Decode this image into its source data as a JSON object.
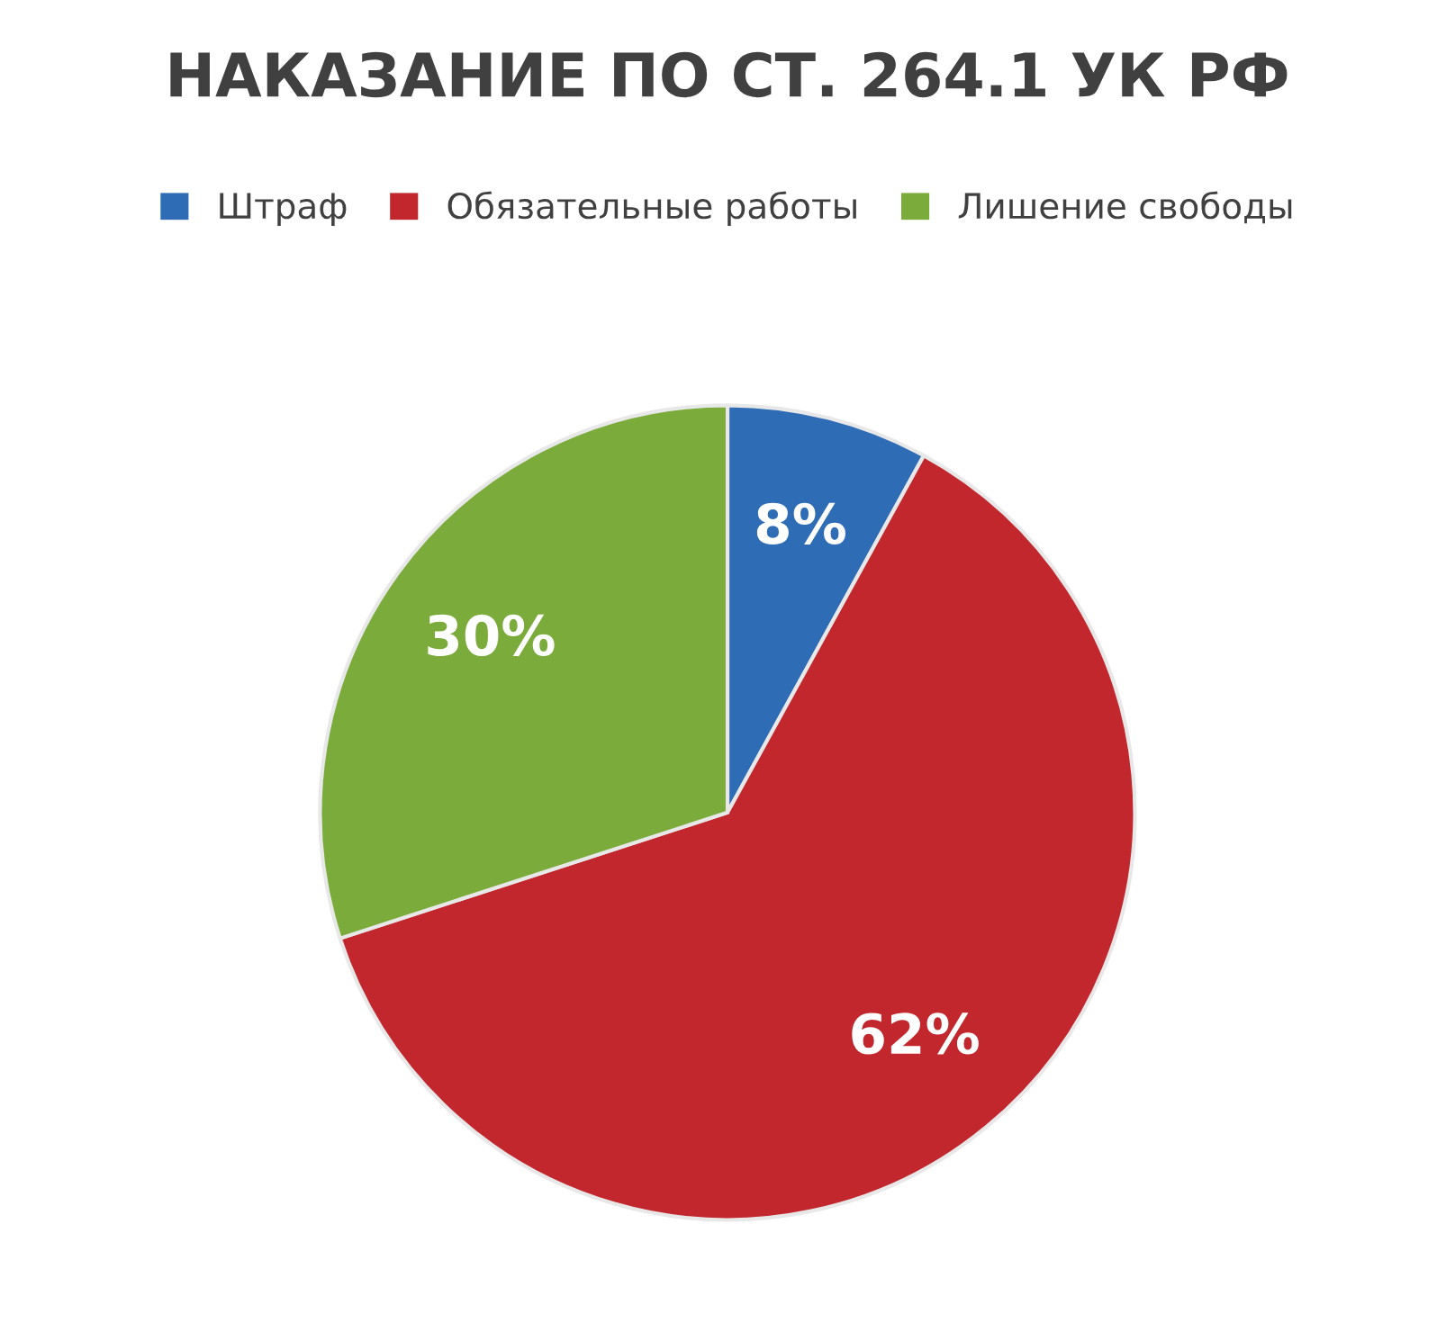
{
  "chart_data": {
    "type": "pie",
    "title": "НАКАЗАНИЕ ПО СТ. 264.1 УК РФ",
    "categories": [
      "Штраф",
      "Обязательные работы",
      "Лишение свободы"
    ],
    "values": [
      8,
      62,
      30
    ],
    "colors": [
      "#2e6db5",
      "#c1272d",
      "#7bab3a"
    ],
    "value_labels": [
      "8%",
      "62%",
      "30%"
    ],
    "legend": "top"
  }
}
